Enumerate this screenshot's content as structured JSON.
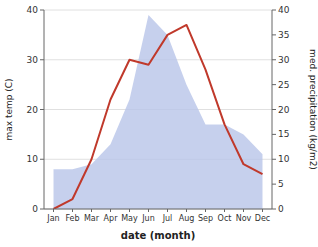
{
  "chart_data": {
    "type": "line",
    "xlabel": "date (month)",
    "ylabel": "max temp (C)",
    "y2label": "med. precipitation (kg/m2)",
    "categories": [
      "Jan",
      "Feb",
      "Mar",
      "Apr",
      "May",
      "Jun",
      "Jul",
      "Aug",
      "Sep",
      "Oct",
      "Nov",
      "Dec"
    ],
    "series": [
      {
        "type": "area",
        "axis": "y2",
        "color": "#b8c4e8",
        "values": [
          8,
          8,
          9,
          13,
          22,
          39,
          35,
          25,
          17,
          17,
          15,
          11
        ]
      },
      {
        "type": "line",
        "axis": "y",
        "color": "#c0392b",
        "values": [
          0,
          2,
          10,
          22,
          30,
          29,
          35,
          37,
          28,
          17,
          9,
          7
        ]
      }
    ],
    "ylim": [
      0,
      40
    ],
    "yticks": [
      0,
      10,
      20,
      30,
      40
    ],
    "y2lim": [
      0,
      40
    ],
    "y2ticks": [
      0,
      5,
      10,
      15,
      20,
      25,
      30,
      35,
      40
    ],
    "grid": true
  }
}
